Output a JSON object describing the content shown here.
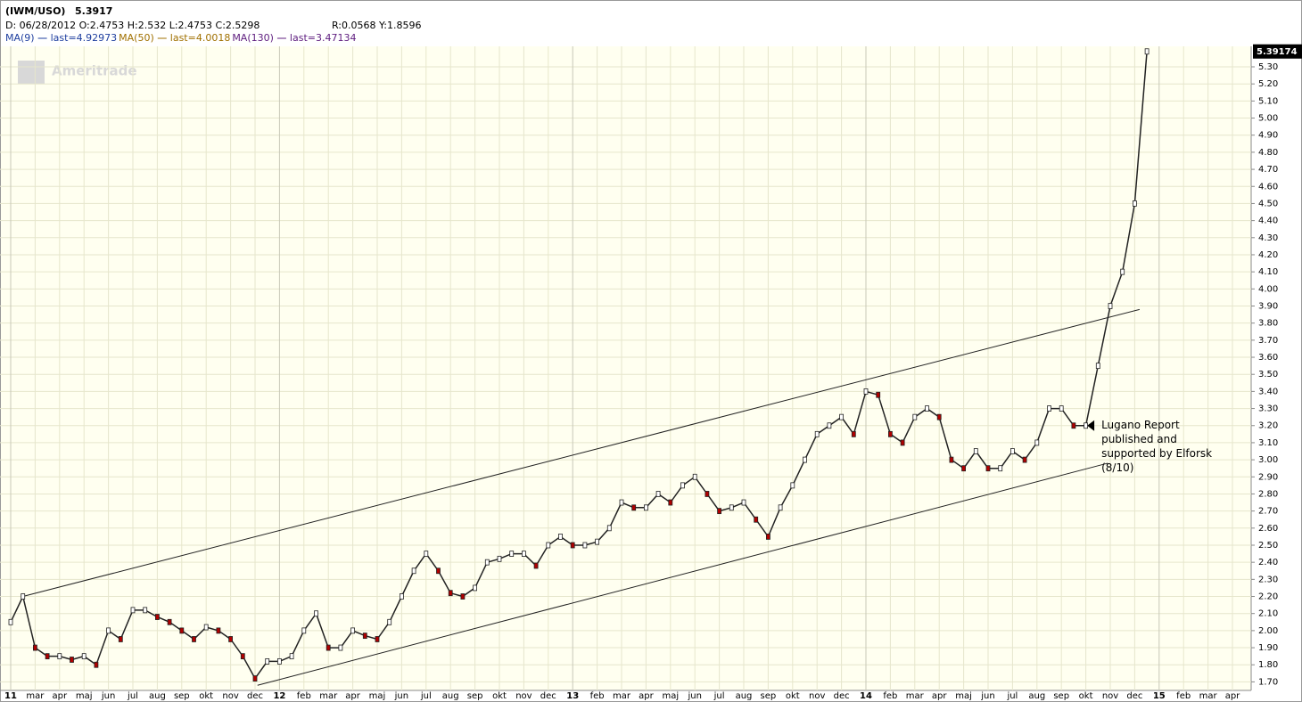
{
  "header": {
    "symbol": "(IWM/USO)",
    "last": "5.3917",
    "ohlc": "D: 06/28/2012 O:2.4753 H:2.532 L:2.4753 C:2.5298",
    "ry": "R:0.0568 Y:1.8596",
    "ma": [
      {
        "text": "MA(9)",
        "last": "last=4.92973",
        "color": "#1f3f9f"
      },
      {
        "text": "MA(50)",
        "last": "last=4.0018",
        "color": "#a07000"
      },
      {
        "text": "MA(130)",
        "last": "last=3.47134",
        "color": "#602080"
      }
    ],
    "watermark": "Ameritrade"
  },
  "chart_data": {
    "type": "line",
    "color": "#222222",
    "categories": [
      "11",
      null,
      "mar",
      null,
      "apr",
      null,
      "maj",
      null,
      "jun",
      null,
      "jul",
      null,
      "aug",
      null,
      "sep",
      null,
      "okt",
      null,
      "nov",
      null,
      "dec",
      null,
      "12",
      null,
      "feb",
      null,
      "mar",
      null,
      "apr",
      null,
      "maj",
      null,
      "jun",
      null,
      "jul",
      null,
      "aug",
      null,
      "sep",
      null,
      "okt",
      null,
      "nov",
      null,
      "dec",
      null,
      "13",
      null,
      "feb",
      null,
      "mar",
      null,
      "apr",
      null,
      "maj",
      null,
      "jun",
      null,
      "jul",
      null,
      "aug",
      null,
      "sep",
      null,
      "okt",
      null,
      "nov",
      null,
      "dec",
      null,
      "14",
      null,
      "feb",
      null,
      "mar",
      null,
      "apr",
      null,
      "maj",
      null,
      "jun",
      null,
      "jul",
      null,
      "aug",
      null,
      "sep",
      null,
      "okt",
      null,
      "nov",
      null,
      "dec",
      null,
      "15",
      null,
      "feb",
      null,
      "mar",
      null,
      "apr",
      null
    ],
    "values": [
      2.05,
      2.2,
      1.9,
      1.85,
      1.85,
      1.83,
      1.85,
      1.8,
      2.0,
      1.95,
      2.12,
      2.12,
      2.08,
      2.05,
      2.0,
      1.95,
      2.02,
      2.0,
      1.95,
      1.85,
      1.72,
      1.82,
      1.82,
      1.85,
      2.0,
      2.1,
      1.9,
      1.9,
      2.0,
      1.97,
      1.95,
      2.05,
      2.2,
      2.35,
      2.45,
      2.35,
      2.22,
      2.2,
      2.25,
      2.4,
      2.42,
      2.45,
      2.45,
      2.38,
      2.5,
      2.55,
      2.5,
      2.5,
      2.52,
      2.6,
      2.75,
      2.72,
      2.72,
      2.8,
      2.75,
      2.85,
      2.9,
      2.8,
      2.7,
      2.72,
      2.75,
      2.65,
      2.55,
      2.72,
      2.85,
      3.0,
      3.15,
      3.2,
      3.25,
      3.15,
      3.4,
      3.38,
      3.15,
      3.1,
      3.25,
      3.3,
      3.25,
      3.0,
      2.95,
      3.05,
      2.95,
      2.95,
      3.05,
      3.0,
      3.1,
      3.3,
      3.3,
      3.2,
      3.2,
      3.55,
      3.9,
      4.1,
      4.5,
      5.39,
      null,
      null,
      null,
      null,
      null,
      null,
      null,
      null
    ],
    "last_label": "5.39174",
    "trendlines": [
      {
        "x": [
          1,
          92.4
        ],
        "y": [
          2.2,
          3.88
        ]
      },
      {
        "x": [
          20.2,
          89.8
        ],
        "y": [
          1.68,
          2.98
        ]
      }
    ],
    "annotation": {
      "lines": [
        "Lugano Report",
        "published and",
        "supported by Elforsk",
        "(8/10)"
      ],
      "x": 88.4,
      "y": 3.2
    },
    "ylim": [
      1.65,
      5.42
    ],
    "yticks": [
      {
        "value": 1.7,
        "label": "1.70"
      },
      {
        "value": 1.8,
        "label": "1.80"
      },
      {
        "value": 1.9,
        "label": "1.90"
      },
      {
        "value": 2.0,
        "label": "2.00"
      },
      {
        "value": 2.1,
        "label": "2.10"
      },
      {
        "value": 2.2,
        "label": "2.20"
      },
      {
        "value": 2.3,
        "label": "2.30"
      },
      {
        "value": 2.4,
        "label": "2.40"
      },
      {
        "value": 2.5,
        "label": "2.50"
      },
      {
        "value": 2.6,
        "label": "2.60"
      },
      {
        "value": 2.7,
        "label": "2.70"
      },
      {
        "value": 2.8,
        "label": "2.80"
      },
      {
        "value": 2.9,
        "label": "2.90"
      },
      {
        "value": 3.0,
        "label": "3.00"
      },
      {
        "value": 3.1,
        "label": "3.10"
      },
      {
        "value": 3.2,
        "label": "3.20"
      },
      {
        "value": 3.3,
        "label": "3.30"
      },
      {
        "value": 3.4,
        "label": "3.40"
      },
      {
        "value": 3.5,
        "label": "3.50"
      },
      {
        "value": 3.6,
        "label": "3.60"
      },
      {
        "value": 3.7,
        "label": "3.70"
      },
      {
        "value": 3.8,
        "label": "3.80"
      },
      {
        "value": 3.9,
        "label": "3.90"
      },
      {
        "value": 4.0,
        "label": "4.00"
      },
      {
        "value": 4.1,
        "label": "4.10"
      },
      {
        "value": 4.2,
        "label": "4.20"
      },
      {
        "value": 4.3,
        "label": "4.30"
      },
      {
        "value": 4.4,
        "label": "4.40"
      },
      {
        "value": 4.5,
        "label": "4.50"
      },
      {
        "value": 4.6,
        "label": "4.60"
      },
      {
        "value": 4.7,
        "label": "4.70"
      },
      {
        "value": 4.8,
        "label": "4.80"
      },
      {
        "value": 4.9,
        "label": "4.90"
      },
      {
        "value": 5.0,
        "label": "5.00"
      },
      {
        "value": 5.1,
        "label": "5.10"
      },
      {
        "value": 5.2,
        "label": "5.20"
      },
      {
        "value": 5.3,
        "label": "5.30"
      }
    ],
    "grid": true
  }
}
